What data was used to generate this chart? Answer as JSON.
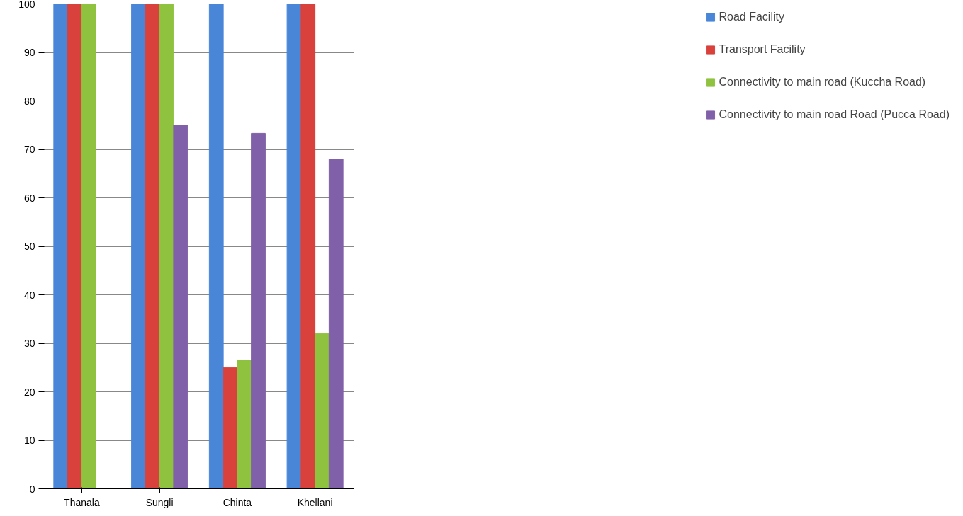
{
  "chart_data": {
    "type": "bar",
    "categories": [
      "Thanala",
      "Sungli",
      "Chinta",
      "Khellani"
    ],
    "series": [
      {
        "name": "Road Facility",
        "color": "#4a86d8",
        "values": [
          100,
          100,
          100,
          100
        ]
      },
      {
        "name": "Transport Facility",
        "color": "#d9413c",
        "values": [
          100,
          100,
          25,
          100
        ]
      },
      {
        "name": "Connectivity to main road (Kuccha Road)",
        "color": "#8fc23f",
        "values": [
          100,
          100,
          26.5,
          32
        ]
      },
      {
        "name": "Connectivity to main road Road (Pucca Road)",
        "color": "#8060a8",
        "values": [
          0,
          75,
          73.3,
          68
        ]
      }
    ],
    "ylim": [
      0,
      100
    ],
    "yticks": [
      0,
      10,
      20,
      30,
      40,
      50,
      60,
      70,
      80,
      90,
      100
    ],
    "grid": "y",
    "legend": "right"
  }
}
